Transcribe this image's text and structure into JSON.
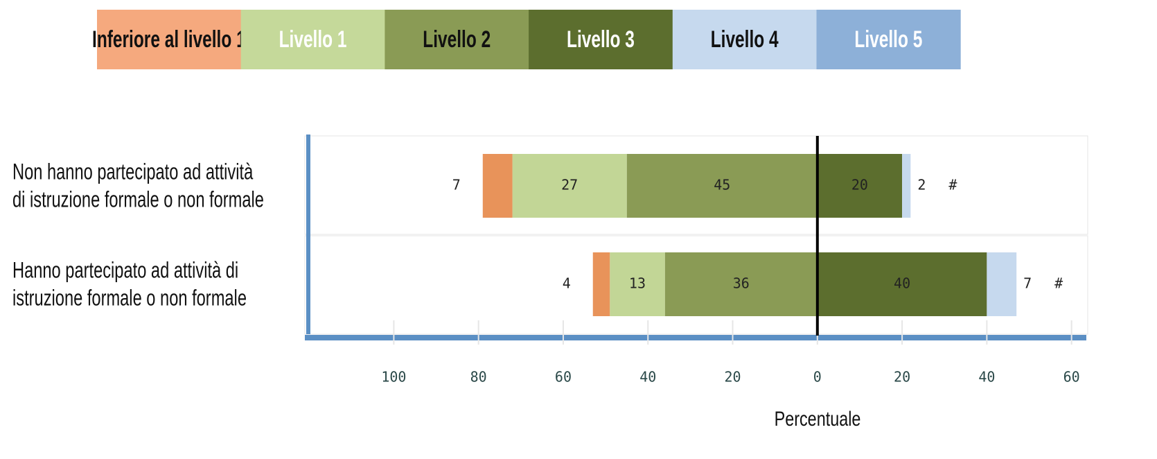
{
  "chart_data": {
    "type": "diverging_bar",
    "categories": [
      [
        "Non hanno partecipato ad attività",
        "di istruzione formale o non formale"
      ],
      [
        "Hanno partecipato ad attività di",
        "istruzione formale o non formale"
      ]
    ],
    "series": [
      {
        "name": "Inferiore al livello 1",
        "color": "#e8935a",
        "legend_color": "#f5a97e",
        "legend_text_color": "#111111",
        "side": "left",
        "values": [
          7,
          4
        ]
      },
      {
        "name": "Livello 1",
        "color": "#c2d696",
        "legend_color": "#c5d99a",
        "legend_text_color": "#ffffff",
        "side": "left",
        "values": [
          27,
          13
        ]
      },
      {
        "name": "Livello 2",
        "color": "#8a9b55",
        "legend_color": "#8a9b55",
        "legend_text_color": "#111111",
        "side": "left",
        "values": [
          45,
          36
        ]
      },
      {
        "name": "Livello 3",
        "color": "#5c6e2e",
        "legend_color": "#5c6e2e",
        "legend_text_color": "#ffffff",
        "side": "right",
        "values": [
          20,
          40
        ]
      },
      {
        "name": "Livello 4",
        "color": "#c6d9ee",
        "legend_color": "#c6d9ee",
        "legend_text_color": "#111111",
        "side": "right",
        "values": [
          2,
          7
        ]
      },
      {
        "name": "Livello 5",
        "color": "#8db0d8",
        "legend_color": "#8db0d8",
        "legend_text_color": "#ffffff",
        "side": "right",
        "values": [
          0,
          0
        ],
        "value_labels": [
          "#",
          "#"
        ]
      }
    ],
    "xlabel": "Percentuale",
    "xlim": [
      -121,
      63
    ],
    "xticks": [
      {
        "value": -100,
        "label": "100"
      },
      {
        "value": -80,
        "label": "80"
      },
      {
        "value": -60,
        "label": "60"
      },
      {
        "value": -40,
        "label": "40"
      },
      {
        "value": -20,
        "label": "20"
      },
      0,
      20,
      40,
      60
    ]
  }
}
